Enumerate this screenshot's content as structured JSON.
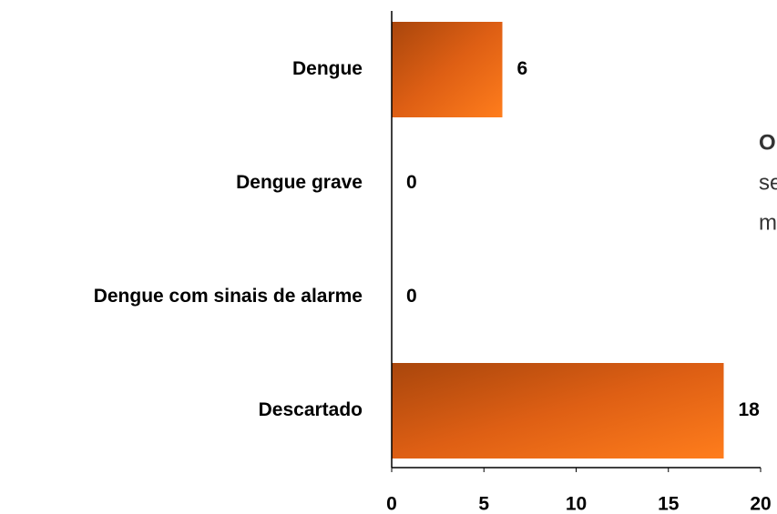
{
  "chart_data": {
    "type": "barh",
    "categories": [
      "Dengue",
      "Dengue grave",
      "Dengue com sinais de alarme",
      "Descartado"
    ],
    "values": [
      6,
      0,
      0,
      18
    ],
    "color": "#e8661a",
    "xlim": [
      0,
      20
    ],
    "xticks": [
      0,
      5,
      10,
      15,
      20
    ],
    "annotations": [
      "O",
      "se",
      "m"
    ]
  }
}
